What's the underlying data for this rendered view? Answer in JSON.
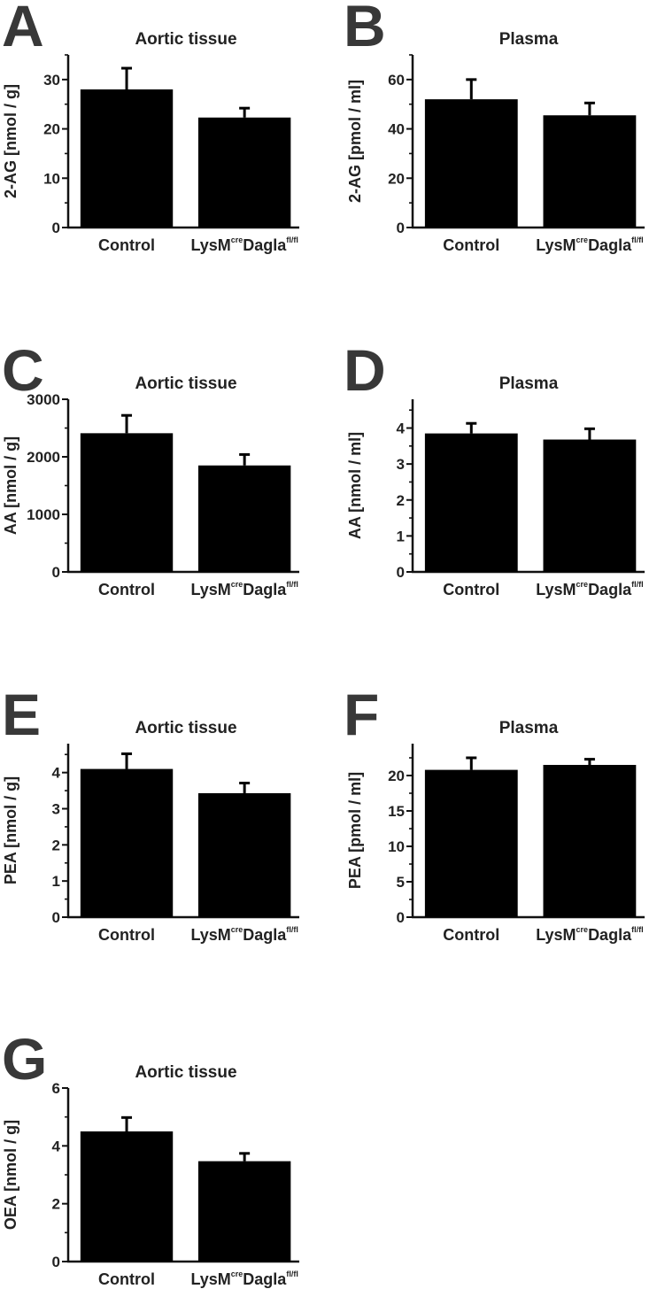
{
  "chart_data": [
    {
      "panel": "A",
      "type": "bar",
      "title": "Aortic tissue",
      "ylabel": "2-AG [nmol / g]",
      "categories": [
        {
          "base": "Control",
          "sup": "",
          "tail": "",
          "tail_sup": ""
        },
        {
          "base": "LysM",
          "sup": "cre",
          "tail": "Dagla",
          "tail_sup": "fl/fl"
        }
      ],
      "values": [
        28,
        22.3
      ],
      "errors": [
        4.3,
        1.9
      ],
      "ylim": [
        0,
        35
      ],
      "yticks": [
        0,
        10,
        20,
        30
      ],
      "minor_ticks": 1
    },
    {
      "panel": "B",
      "type": "bar",
      "title": "Plasma",
      "ylabel": "2-AG [pmol / ml]",
      "categories": [
        {
          "base": "Control",
          "sup": "",
          "tail": "",
          "tail_sup": ""
        },
        {
          "base": "LysM",
          "sup": "cre",
          "tail": "Dagla",
          "tail_sup": "fl/fl"
        }
      ],
      "values": [
        52,
        45.5
      ],
      "errors": [
        8,
        5
      ],
      "ylim": [
        0,
        70
      ],
      "yticks": [
        0,
        20,
        40,
        60
      ],
      "minor_ticks": 1
    },
    {
      "panel": "C",
      "type": "bar",
      "title": "Aortic tissue",
      "ylabel": "AA [nmol / g]",
      "categories": [
        {
          "base": "Control",
          "sup": "",
          "tail": "",
          "tail_sup": ""
        },
        {
          "base": "LysM",
          "sup": "cre",
          "tail": "Dagla",
          "tail_sup": "fl/fl"
        }
      ],
      "values": [
        2410,
        1850
      ],
      "errors": [
        310,
        190
      ],
      "ylim": [
        0,
        3000
      ],
      "yticks": [
        0,
        1000,
        2000,
        3000
      ],
      "minor_ticks": 1
    },
    {
      "panel": "D",
      "type": "bar",
      "title": "Plasma",
      "ylabel": "AA [nmol / ml]",
      "categories": [
        {
          "base": "Control",
          "sup": "",
          "tail": "",
          "tail_sup": ""
        },
        {
          "base": "LysM",
          "sup": "cre",
          "tail": "Dagla",
          "tail_sup": "fl/fl"
        }
      ],
      "values": [
        3.85,
        3.68
      ],
      "errors": [
        0.28,
        0.3
      ],
      "ylim": [
        0,
        4.8
      ],
      "yticks": [
        0,
        1,
        2,
        3,
        4
      ],
      "minor_ticks": 1
    },
    {
      "panel": "E",
      "type": "bar",
      "title": "Aortic tissue",
      "ylabel": "PEA [nmol / g]",
      "categories": [
        {
          "base": "Control",
          "sup": "",
          "tail": "",
          "tail_sup": ""
        },
        {
          "base": "LysM",
          "sup": "cre",
          "tail": "Dagla",
          "tail_sup": "fl/fl"
        }
      ],
      "values": [
        4.1,
        3.43
      ],
      "errors": [
        0.42,
        0.28
      ],
      "ylim": [
        0,
        4.8
      ],
      "yticks": [
        0,
        1,
        2,
        3,
        4
      ],
      "minor_ticks": 1
    },
    {
      "panel": "F",
      "type": "bar",
      "title": "Plasma",
      "ylabel": "PEA [pmol / ml]",
      "categories": [
        {
          "base": "Control",
          "sup": "",
          "tail": "",
          "tail_sup": ""
        },
        {
          "base": "LysM",
          "sup": "cre",
          "tail": "Dagla",
          "tail_sup": "fl/fl"
        }
      ],
      "values": [
        20.8,
        21.5
      ],
      "errors": [
        1.7,
        0.8
      ],
      "ylim": [
        0,
        24.5
      ],
      "yticks": [
        0,
        5,
        10,
        15,
        20
      ],
      "minor_ticks": 1
    },
    {
      "panel": "G",
      "type": "bar",
      "title": "Aortic tissue",
      "ylabel": "OEA [nmol / g]",
      "categories": [
        {
          "base": "Control",
          "sup": "",
          "tail": "",
          "tail_sup": ""
        },
        {
          "base": "LysM",
          "sup": "cre",
          "tail": "Dagla",
          "tail_sup": "fl/fl"
        }
      ],
      "values": [
        4.5,
        3.47
      ],
      "errors": [
        0.48,
        0.27
      ],
      "ylim": [
        0,
        6
      ],
      "yticks": [
        0,
        2,
        4,
        6
      ],
      "minor_ticks": 1
    }
  ]
}
